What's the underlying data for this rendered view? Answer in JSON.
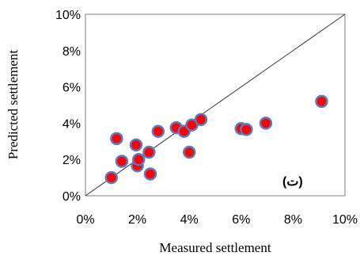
{
  "chart_data": {
    "type": "scatter",
    "xlabel": "Measured settlement",
    "ylabel": "Predicted settlement",
    "xlim": [
      0,
      10
    ],
    "ylim": [
      0,
      10
    ],
    "x_ticks": [
      0,
      2,
      4,
      6,
      8,
      10
    ],
    "y_ticks": [
      0,
      2,
      4,
      6,
      8,
      10
    ],
    "x_tick_labels": [
      "0%",
      "2%",
      "4%",
      "6%",
      "8%",
      "10%"
    ],
    "y_tick_labels": [
      "0%",
      "2%",
      "4%",
      "6%",
      "8%",
      "10%"
    ],
    "grid": false,
    "reference_line": {
      "from": [
        0,
        0
      ],
      "to": [
        10,
        10
      ]
    },
    "annotation": "(ت)",
    "marker_fill": "#ff0000",
    "marker_edge": "#5b7bbf",
    "points": [
      {
        "x": 1.0,
        "y": 1.0
      },
      {
        "x": 1.2,
        "y": 3.15
      },
      {
        "x": 1.4,
        "y": 1.9
      },
      {
        "x": 1.95,
        "y": 2.8
      },
      {
        "x": 2.0,
        "y": 1.65
      },
      {
        "x": 2.05,
        "y": 2.0
      },
      {
        "x": 2.45,
        "y": 2.4
      },
      {
        "x": 2.5,
        "y": 1.2
      },
      {
        "x": 2.8,
        "y": 3.55
      },
      {
        "x": 3.5,
        "y": 3.75
      },
      {
        "x": 3.8,
        "y": 3.55
      },
      {
        "x": 4.0,
        "y": 2.4
      },
      {
        "x": 4.1,
        "y": 3.9
      },
      {
        "x": 4.45,
        "y": 4.2
      },
      {
        "x": 6.0,
        "y": 3.7
      },
      {
        "x": 6.2,
        "y": 3.65
      },
      {
        "x": 6.95,
        "y": 4.0
      },
      {
        "x": 9.1,
        "y": 5.2
      }
    ]
  }
}
